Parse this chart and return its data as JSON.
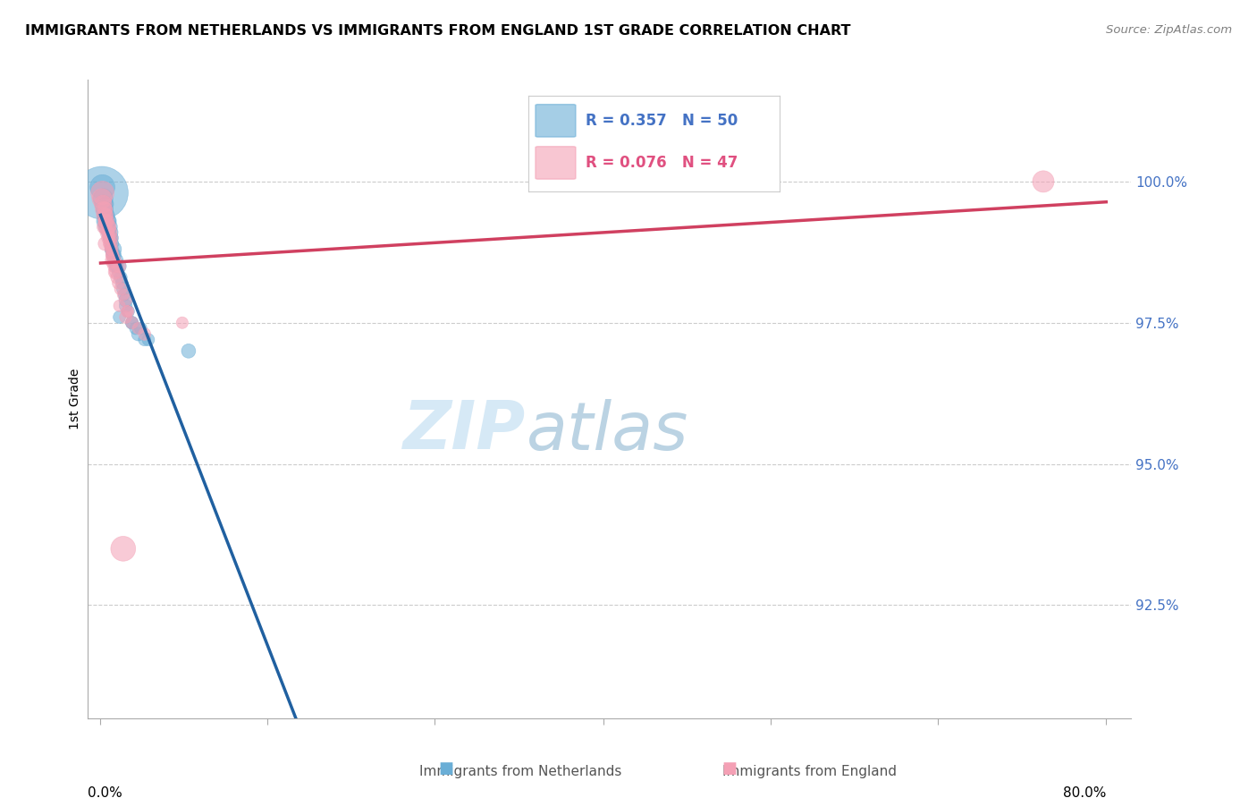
{
  "title": "IMMIGRANTS FROM NETHERLANDS VS IMMIGRANTS FROM ENGLAND 1ST GRADE CORRELATION CHART",
  "source": "Source: ZipAtlas.com",
  "ylabel": "1st Grade",
  "blue_color": "#6aaed6",
  "pink_color": "#f4a0b5",
  "blue_line_color": "#2060a0",
  "pink_line_color": "#d04060",
  "legend_r_blue": "R = 0.357",
  "legend_n_blue": "N = 50",
  "legend_r_pink": "R = 0.076",
  "legend_n_pink": "N = 47",
  "yticks": [
    92.5,
    95.0,
    97.5,
    100.0
  ],
  "ytick_labels": [
    "92.5%",
    "95.0%",
    "97.5%",
    "100.0%"
  ],
  "ylim": [
    90.5,
    101.8
  ],
  "xlim": [
    -1.0,
    82.0
  ]
}
